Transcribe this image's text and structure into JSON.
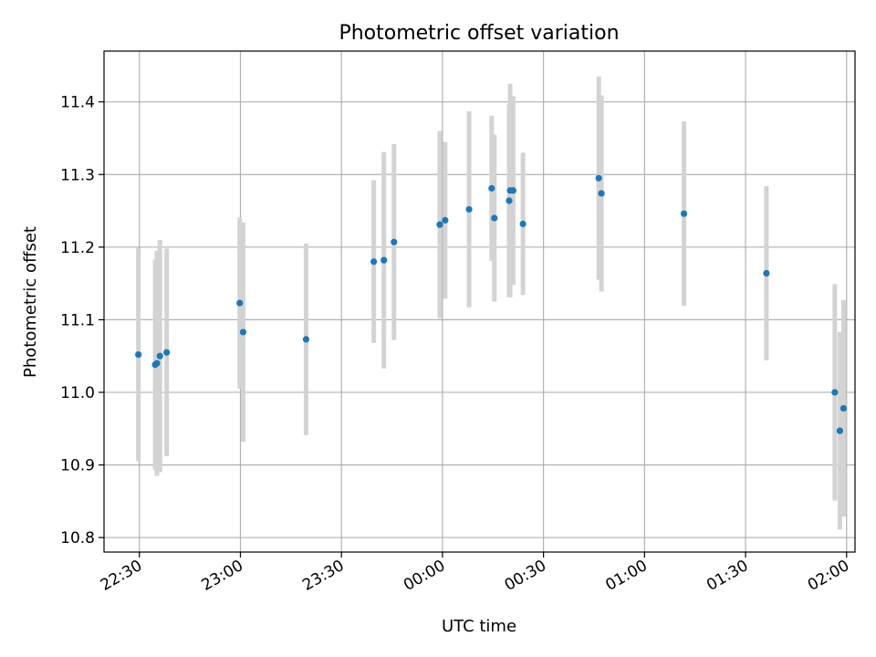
{
  "chart_data": {
    "type": "scatter",
    "title": "Photometric offset variation",
    "xlabel": "UTC time",
    "ylabel": "Photometric offset",
    "x_start": "22:30",
    "x_end": "02:00",
    "x_ticks": [
      {
        "label": "22:30",
        "minutes": 0
      },
      {
        "label": "23:00",
        "minutes": 30
      },
      {
        "label": "23:30",
        "minutes": 60
      },
      {
        "label": "00:00",
        "minutes": 90
      },
      {
        "label": "00:30",
        "minutes": 120
      },
      {
        "label": "01:00",
        "minutes": 150
      },
      {
        "label": "01:30",
        "minutes": 180
      },
      {
        "label": "02:00",
        "minutes": 210
      }
    ],
    "xlim_minutes": [
      -10.5,
      212.5
    ],
    "y_ticks": [
      10.8,
      10.9,
      11.0,
      11.1,
      11.2,
      11.3,
      11.4
    ],
    "ylim": [
      10.78,
      11.47
    ],
    "grid": true,
    "series": [
      {
        "marker_color": "#1f77b4",
        "errorbar_color": "#d3d3d3",
        "points": [
          {
            "t": -0.3,
            "y": 11.052,
            "err": 0.147
          },
          {
            "t": 4.7,
            "y": 11.038,
            "err": 0.145
          },
          {
            "t": 5.2,
            "y": 11.04,
            "err": 0.155
          },
          {
            "t": 6.1,
            "y": 11.05,
            "err": 0.16
          },
          {
            "t": 8.1,
            "y": 11.055,
            "err": 0.143
          },
          {
            "t": 29.8,
            "y": 11.123,
            "err": 0.118
          },
          {
            "t": 30.8,
            "y": 11.083,
            "err": 0.151
          },
          {
            "t": 49.5,
            "y": 11.073,
            "err": 0.132
          },
          {
            "t": 69.6,
            "y": 11.18,
            "err": 0.112
          },
          {
            "t": 72.6,
            "y": 11.182,
            "err": 0.149
          },
          {
            "t": 75.6,
            "y": 11.207,
            "err": 0.135
          },
          {
            "t": 89.2,
            "y": 11.231,
            "err": 0.129
          },
          {
            "t": 90.8,
            "y": 11.237,
            "err": 0.108
          },
          {
            "t": 97.9,
            "y": 11.252,
            "err": 0.135
          },
          {
            "t": 104.6,
            "y": 11.281,
            "err": 0.1
          },
          {
            "t": 105.4,
            "y": 11.24,
            "err": 0.115
          },
          {
            "t": 109.8,
            "y": 11.264,
            "err": 0.133
          },
          {
            "t": 110.1,
            "y": 11.278,
            "err": 0.147
          },
          {
            "t": 111.0,
            "y": 11.278,
            "err": 0.13
          },
          {
            "t": 113.9,
            "y": 11.232,
            "err": 0.098
          },
          {
            "t": 136.4,
            "y": 11.295,
            "err": 0.14
          },
          {
            "t": 137.2,
            "y": 11.274,
            "err": 0.135
          },
          {
            "t": 161.7,
            "y": 11.246,
            "err": 0.127
          },
          {
            "t": 186.2,
            "y": 11.164,
            "err": 0.12
          },
          {
            "t": 206.5,
            "y": 11.0,
            "err": 0.149
          },
          {
            "t": 208.0,
            "y": 10.947,
            "err": 0.136
          },
          {
            "t": 209.1,
            "y": 10.978,
            "err": 0.149
          }
        ]
      }
    ]
  }
}
